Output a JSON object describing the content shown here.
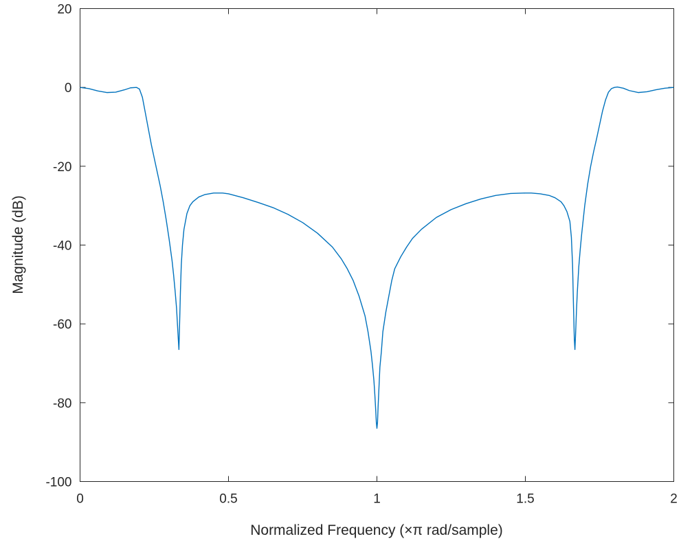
{
  "chart_data": {
    "type": "line",
    "title": "",
    "xlabel": "Normalized Frequency  (×π rad/sample)",
    "ylabel": "Magnitude (dB)",
    "xlim": [
      0,
      2
    ],
    "ylim": [
      -100,
      20
    ],
    "xticks": [
      0,
      0.5,
      1,
      1.5,
      2
    ],
    "xtick_labels": [
      "0",
      "0.5",
      "1",
      "1.5",
      "2"
    ],
    "yticks": [
      20,
      0,
      -20,
      -40,
      -60,
      -80,
      -100
    ],
    "ytick_labels": [
      "20",
      "0",
      "-20",
      "-40",
      "-60",
      "-80",
      "-100"
    ],
    "grid": false,
    "line_color": "#0072BD",
    "axis_color": "#262626",
    "series": [
      {
        "x": [
          0,
          0.03,
          0.06,
          0.09,
          0.12,
          0.15,
          0.17,
          0.19,
          0.2,
          0.21,
          0.22,
          0.23,
          0.24,
          0.25,
          0.26,
          0.27,
          0.28,
          0.29,
          0.3,
          0.31,
          0.315,
          0.32,
          0.325,
          0.328,
          0.331,
          0.333,
          0.335,
          0.338,
          0.341,
          0.345,
          0.35,
          0.36,
          0.37,
          0.38,
          0.4,
          0.42,
          0.45,
          0.48,
          0.5,
          0.55,
          0.6,
          0.65,
          0.7,
          0.75,
          0.8,
          0.85,
          0.88,
          0.9,
          0.92,
          0.94,
          0.95,
          0.96,
          0.97,
          0.98,
          0.985,
          0.99,
          0.993,
          0.996,
          0.998,
          1,
          1.002,
          1.004,
          1.007,
          1.01,
          1.015,
          1.02,
          1.03,
          1.04,
          1.05,
          1.06,
          1.08,
          1.1,
          1.12,
          1.15,
          1.2,
          1.25,
          1.3,
          1.35,
          1.4,
          1.45,
          1.5,
          1.52,
          1.55,
          1.58,
          1.6,
          1.62,
          1.63,
          1.64,
          1.65,
          1.655,
          1.659,
          1.662,
          1.665,
          1.667,
          1.669,
          1.672,
          1.675,
          1.68,
          1.685,
          1.69,
          1.7,
          1.71,
          1.72,
          1.73,
          1.74,
          1.75,
          1.76,
          1.77,
          1.78,
          1.79,
          1.8,
          1.81,
          1.83,
          1.85,
          1.88,
          1.91,
          1.94,
          1.97,
          2
        ],
        "y": [
          0,
          -0.3,
          -0.9,
          -1.3,
          -1.2,
          -0.6,
          -0.1,
          0,
          -0.4,
          -2.5,
          -6.5,
          -10.5,
          -14.5,
          -18,
          -21.5,
          -25,
          -29,
          -33.5,
          -38.5,
          -44,
          -47.5,
          -51.5,
          -56,
          -60,
          -64,
          -66.5,
          -61,
          -52,
          -45,
          -40,
          -36,
          -32,
          -30,
          -29,
          -27.8,
          -27.2,
          -26.8,
          -26.8,
          -27,
          -28,
          -29.2,
          -30.5,
          -32.2,
          -34.3,
          -37,
          -40.5,
          -43.5,
          -46,
          -49,
          -53,
          -55.5,
          -58,
          -62,
          -67,
          -70.5,
          -74.5,
          -78,
          -82,
          -85,
          -86.5,
          -85,
          -81,
          -76,
          -71,
          -67,
          -62,
          -57,
          -53,
          -49,
          -46,
          -43,
          -40.5,
          -38.3,
          -36,
          -33,
          -31,
          -29.5,
          -28.3,
          -27.4,
          -26.9,
          -26.8,
          -26.8,
          -27,
          -27.4,
          -28,
          -29,
          -30,
          -31.5,
          -34,
          -38,
          -45,
          -55,
          -64,
          -66.5,
          -63,
          -57,
          -52,
          -45.5,
          -41,
          -37,
          -30,
          -24.5,
          -20,
          -16.3,
          -13,
          -9.5,
          -6,
          -3.2,
          -1.2,
          -0.3,
          0,
          0.1,
          -0.2,
          -0.8,
          -1.3,
          -1.1,
          -0.6,
          -0.2,
          0
        ]
      }
    ]
  }
}
